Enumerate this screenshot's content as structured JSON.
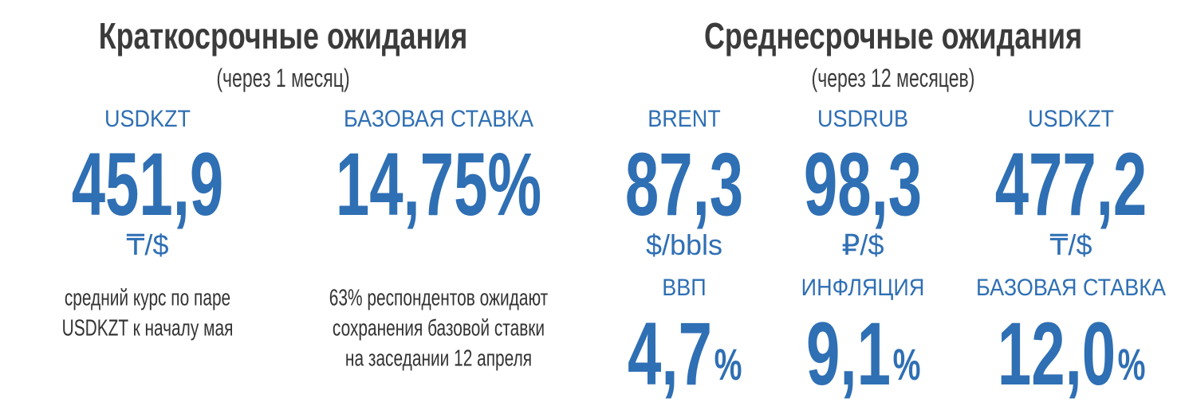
{
  "short_term": {
    "title": "Краткосрочные ожидания",
    "subtitle": "(через 1 месяц)",
    "items": [
      {
        "label": "USDKZT",
        "value": "451,9",
        "unit": "₸/$",
        "note": [
          "средний курс по паре",
          "USDKZT к началу мая"
        ]
      },
      {
        "label": "БАЗОВАЯ СТАВКА",
        "value": "14,75%",
        "note": [
          "63% респондентов ожидают",
          "сохранения базовой ставки",
          "на заседании 12 апреля"
        ]
      }
    ]
  },
  "mid_term": {
    "title": "Среднесрочные ожидания",
    "subtitle": "(через 12 месяцев)",
    "items": [
      {
        "label": "BRENT",
        "value": "87,3",
        "unit": "$/bbls"
      },
      {
        "label": "USDRUB",
        "value": "98,3",
        "unit": "₽/$"
      },
      {
        "label": "USDKZT",
        "value": "477,2",
        "unit": "₸/$"
      }
    ],
    "macro": [
      {
        "label": "ВВП",
        "value": "4,7",
        "unit": "%"
      },
      {
        "label": "ИНФЛЯЦИЯ",
        "value": "9,1",
        "unit": "%"
      },
      {
        "label": "БАЗОВАЯ СТАВКА",
        "value": "12,0",
        "unit": "%"
      }
    ]
  }
}
